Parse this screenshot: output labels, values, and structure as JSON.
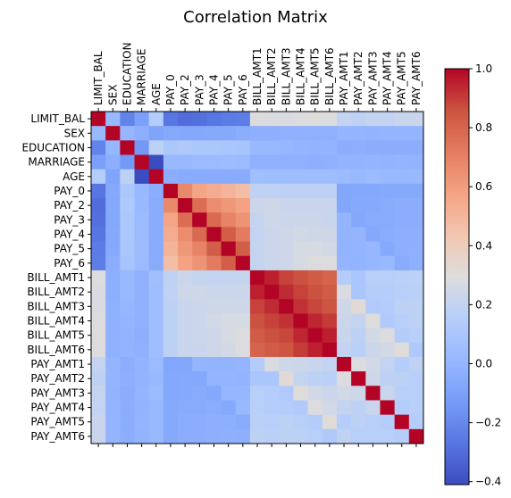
{
  "chart_data": {
    "type": "heatmap",
    "title": "Correlation Matrix",
    "labels": [
      "LIMIT_BAL",
      "SEX",
      "EDUCATION",
      "MARRIAGE",
      "AGE",
      "PAY_0",
      "PAY_2",
      "PAY_3",
      "PAY_4",
      "PAY_5",
      "PAY_6",
      "BILL_AMT1",
      "BILL_AMT2",
      "BILL_AMT3",
      "BILL_AMT4",
      "BILL_AMT5",
      "BILL_AMT6",
      "PAY_AMT1",
      "PAY_AMT2",
      "PAY_AMT3",
      "PAY_AMT4",
      "PAY_AMT5",
      "PAY_AMT6"
    ],
    "matrix": [
      [
        1.0,
        0.02,
        -0.22,
        -0.11,
        0.14,
        -0.27,
        -0.3,
        -0.29,
        -0.27,
        -0.25,
        -0.24,
        0.29,
        0.28,
        0.28,
        0.29,
        0.3,
        0.29,
        0.2,
        0.18,
        0.21,
        0.2,
        0.22,
        0.22
      ],
      [
        0.02,
        1.0,
        0.01,
        -0.03,
        -0.09,
        -0.06,
        -0.07,
        -0.07,
        -0.06,
        -0.06,
        -0.04,
        -0.03,
        -0.03,
        -0.02,
        -0.02,
        -0.02,
        -0.02,
        0.0,
        -0.0,
        -0.01,
        -0.0,
        -0.0,
        -0.0
      ],
      [
        -0.22,
        0.01,
        1.0,
        -0.14,
        0.18,
        0.11,
        0.12,
        0.11,
        0.11,
        0.1,
        0.09,
        0.02,
        0.02,
        0.01,
        -0.0,
        -0.01,
        -0.01,
        -0.04,
        -0.03,
        -0.04,
        -0.04,
        -0.04,
        -0.04
      ],
      [
        -0.11,
        -0.03,
        -0.14,
        1.0,
        -0.41,
        0.02,
        0.02,
        0.03,
        0.03,
        0.04,
        0.03,
        -0.02,
        -0.02,
        -0.02,
        -0.02,
        -0.03,
        -0.02,
        -0.01,
        -0.01,
        -0.0,
        -0.01,
        -0.0,
        -0.01
      ],
      [
        0.14,
        -0.09,
        0.18,
        -0.41,
        1.0,
        -0.04,
        -0.05,
        -0.05,
        -0.05,
        -0.05,
        -0.05,
        0.06,
        0.05,
        0.05,
        0.05,
        0.05,
        0.05,
        0.03,
        0.02,
        0.03,
        0.02,
        0.02,
        0.02
      ],
      [
        -0.27,
        -0.06,
        0.11,
        0.02,
        -0.04,
        1.0,
        0.67,
        0.57,
        0.54,
        0.51,
        0.47,
        0.19,
        0.19,
        0.18,
        0.18,
        0.18,
        0.18,
        -0.08,
        -0.07,
        -0.07,
        -0.06,
        -0.06,
        -0.06
      ],
      [
        -0.3,
        -0.07,
        0.12,
        0.02,
        -0.05,
        0.67,
        1.0,
        0.77,
        0.66,
        0.62,
        0.58,
        0.23,
        0.24,
        0.22,
        0.22,
        0.22,
        0.22,
        -0.08,
        -0.06,
        -0.06,
        -0.05,
        -0.04,
        -0.04
      ],
      [
        -0.29,
        -0.07,
        0.11,
        0.03,
        -0.05,
        0.57,
        0.77,
        1.0,
        0.78,
        0.69,
        0.63,
        0.21,
        0.24,
        0.23,
        0.23,
        0.23,
        0.22,
        0.0,
        -0.07,
        -0.05,
        -0.05,
        -0.04,
        -0.04
      ],
      [
        -0.27,
        -0.06,
        0.11,
        0.03,
        -0.05,
        0.54,
        0.66,
        0.78,
        1.0,
        0.82,
        0.72,
        0.2,
        0.23,
        0.24,
        0.25,
        0.24,
        0.24,
        -0.01,
        -0.0,
        -0.07,
        -0.04,
        -0.03,
        -0.03
      ],
      [
        -0.25,
        -0.06,
        0.1,
        0.04,
        -0.05,
        0.51,
        0.62,
        0.69,
        0.82,
        1.0,
        0.82,
        0.21,
        0.23,
        0.24,
        0.27,
        0.27,
        0.26,
        -0.01,
        -0.0,
        0.01,
        -0.06,
        -0.03,
        -0.02
      ],
      [
        -0.24,
        -0.04,
        0.09,
        0.03,
        -0.05,
        0.47,
        0.58,
        0.63,
        0.72,
        0.82,
        1.0,
        0.21,
        0.23,
        0.24,
        0.27,
        0.29,
        0.29,
        -0.0,
        -0.01,
        0.01,
        0.02,
        -0.05,
        -0.03
      ],
      [
        0.29,
        -0.03,
        0.02,
        -0.02,
        0.06,
        0.19,
        0.23,
        0.21,
        0.2,
        0.21,
        0.21,
        1.0,
        0.95,
        0.89,
        0.86,
        0.83,
        0.8,
        0.14,
        0.1,
        0.16,
        0.16,
        0.17,
        0.18
      ],
      [
        0.28,
        -0.03,
        0.02,
        -0.02,
        0.05,
        0.19,
        0.24,
        0.24,
        0.23,
        0.23,
        0.23,
        0.95,
        1.0,
        0.93,
        0.89,
        0.86,
        0.83,
        0.28,
        0.1,
        0.15,
        0.15,
        0.16,
        0.17
      ],
      [
        0.28,
        -0.02,
        0.01,
        -0.02,
        0.05,
        0.18,
        0.22,
        0.23,
        0.24,
        0.24,
        0.24,
        0.89,
        0.93,
        1.0,
        0.92,
        0.88,
        0.85,
        0.24,
        0.32,
        0.13,
        0.14,
        0.18,
        0.18
      ],
      [
        0.29,
        -0.02,
        -0.0,
        -0.02,
        0.05,
        0.18,
        0.22,
        0.23,
        0.25,
        0.27,
        0.27,
        0.86,
        0.89,
        0.92,
        1.0,
        0.94,
        0.9,
        0.23,
        0.21,
        0.3,
        0.13,
        0.16,
        0.18
      ],
      [
        0.3,
        -0.02,
        -0.01,
        -0.03,
        0.05,
        0.18,
        0.22,
        0.23,
        0.24,
        0.27,
        0.29,
        0.83,
        0.86,
        0.88,
        0.94,
        1.0,
        0.95,
        0.22,
        0.18,
        0.25,
        0.29,
        0.14,
        0.16
      ],
      [
        0.29,
        -0.02,
        -0.01,
        -0.02,
        0.05,
        0.18,
        0.22,
        0.22,
        0.24,
        0.26,
        0.29,
        0.8,
        0.83,
        0.85,
        0.9,
        0.95,
        1.0,
        0.2,
        0.17,
        0.23,
        0.25,
        0.31,
        0.12
      ],
      [
        0.2,
        0.0,
        -0.04,
        -0.01,
        0.03,
        -0.08,
        -0.08,
        0.0,
        -0.01,
        -0.01,
        -0.0,
        0.14,
        0.28,
        0.24,
        0.23,
        0.22,
        0.2,
        1.0,
        0.29,
        0.25,
        0.2,
        0.15,
        0.19
      ],
      [
        0.18,
        -0.0,
        -0.03,
        -0.01,
        0.02,
        -0.07,
        -0.06,
        -0.07,
        -0.0,
        -0.0,
        -0.01,
        0.1,
        0.1,
        0.32,
        0.21,
        0.18,
        0.17,
        0.29,
        1.0,
        0.24,
        0.18,
        0.18,
        0.16
      ],
      [
        0.21,
        -0.01,
        -0.04,
        -0.0,
        0.03,
        -0.07,
        -0.06,
        -0.05,
        -0.07,
        0.01,
        0.01,
        0.16,
        0.15,
        0.13,
        0.3,
        0.25,
        0.23,
        0.25,
        0.24,
        1.0,
        0.22,
        0.16,
        0.16
      ],
      [
        0.2,
        -0.0,
        -0.04,
        -0.01,
        0.02,
        -0.06,
        -0.05,
        -0.05,
        -0.04,
        -0.06,
        0.02,
        0.16,
        0.15,
        0.14,
        0.13,
        0.29,
        0.25,
        0.2,
        0.18,
        0.22,
        1.0,
        0.15,
        0.16
      ],
      [
        0.22,
        -0.0,
        -0.04,
        -0.0,
        0.02,
        -0.06,
        -0.04,
        -0.04,
        -0.03,
        -0.03,
        -0.05,
        0.17,
        0.16,
        0.18,
        0.16,
        0.14,
        0.31,
        0.15,
        0.18,
        0.16,
        0.15,
        1.0,
        0.15
      ],
      [
        0.22,
        -0.0,
        -0.04,
        -0.01,
        0.02,
        -0.06,
        -0.04,
        -0.04,
        -0.03,
        -0.02,
        -0.03,
        0.18,
        0.17,
        0.18,
        0.18,
        0.16,
        0.12,
        0.19,
        0.16,
        0.16,
        0.16,
        0.15,
        1.0
      ]
    ],
    "vmin": -0.41,
    "vmax": 1.0,
    "colormap": "coolwarm",
    "colorbar_ticks": [
      1.0,
      0.8,
      0.6,
      0.4,
      0.2,
      0.0,
      -0.2,
      -0.4
    ],
    "colorbar_tick_labels": [
      "1.0",
      "0.8",
      "0.6",
      "0.4",
      "0.2",
      "0.0",
      "−0.2",
      "−0.4"
    ],
    "grid": false,
    "legend": "colorbar-right"
  }
}
